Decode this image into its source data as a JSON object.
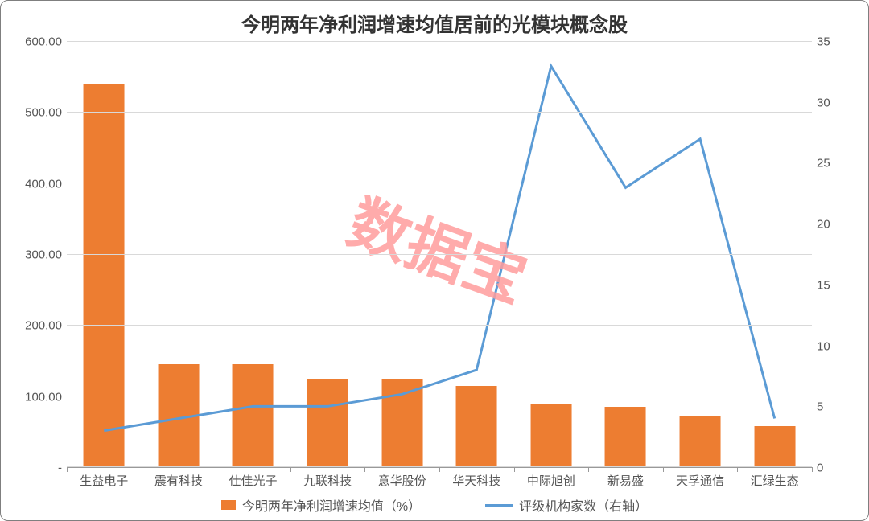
{
  "chart": {
    "type": "bar+line",
    "title": "今明两年净利润增速均值居前的光模块概念股",
    "title_fontsize": 24,
    "title_color": "#333333",
    "background_color": "#ffffff",
    "grid_color": "#d9d9d9",
    "axis_label_color": "#555555",
    "axis_label_fontsize": 15,
    "categories": [
      "生益电子",
      "震有科技",
      "仕佳光子",
      "九联科技",
      "意华股份",
      "华天科技",
      "中际旭创",
      "新易盛",
      "天孚通信",
      "汇绿生态"
    ],
    "left_axis": {
      "label": "今明两年净利润增速均值（%）",
      "min": 0,
      "max": 600,
      "step": 100,
      "tick_decimals": 2,
      "hide_zero_label": true
    },
    "right_axis": {
      "label": "评级机构家数（右轴）",
      "min": 0,
      "max": 35,
      "step": 5,
      "tick_decimals": 0,
      "hide_zero_label": false
    },
    "bars": {
      "values": [
        540,
        145,
        145,
        125,
        125,
        115,
        90,
        85,
        72,
        58
      ],
      "color": "#ed7d31",
      "width_frac": 0.55
    },
    "line": {
      "values": [
        3,
        4,
        5,
        5,
        6,
        8,
        33,
        23,
        27,
        4
      ],
      "color": "#5b9bd5",
      "width": 3
    },
    "legend": {
      "items": [
        {
          "kind": "bar",
          "label": "今明两年净利润增速均值（%）",
          "color": "#ed7d31"
        },
        {
          "kind": "line",
          "label": "评级机构家数（右轴）",
          "color": "#5b9bd5"
        }
      ],
      "fontsize": 16
    },
    "watermark": {
      "text": "数据宝",
      "color": "#ff9d9d",
      "opacity": 0.85,
      "fontsize": 76
    }
  }
}
